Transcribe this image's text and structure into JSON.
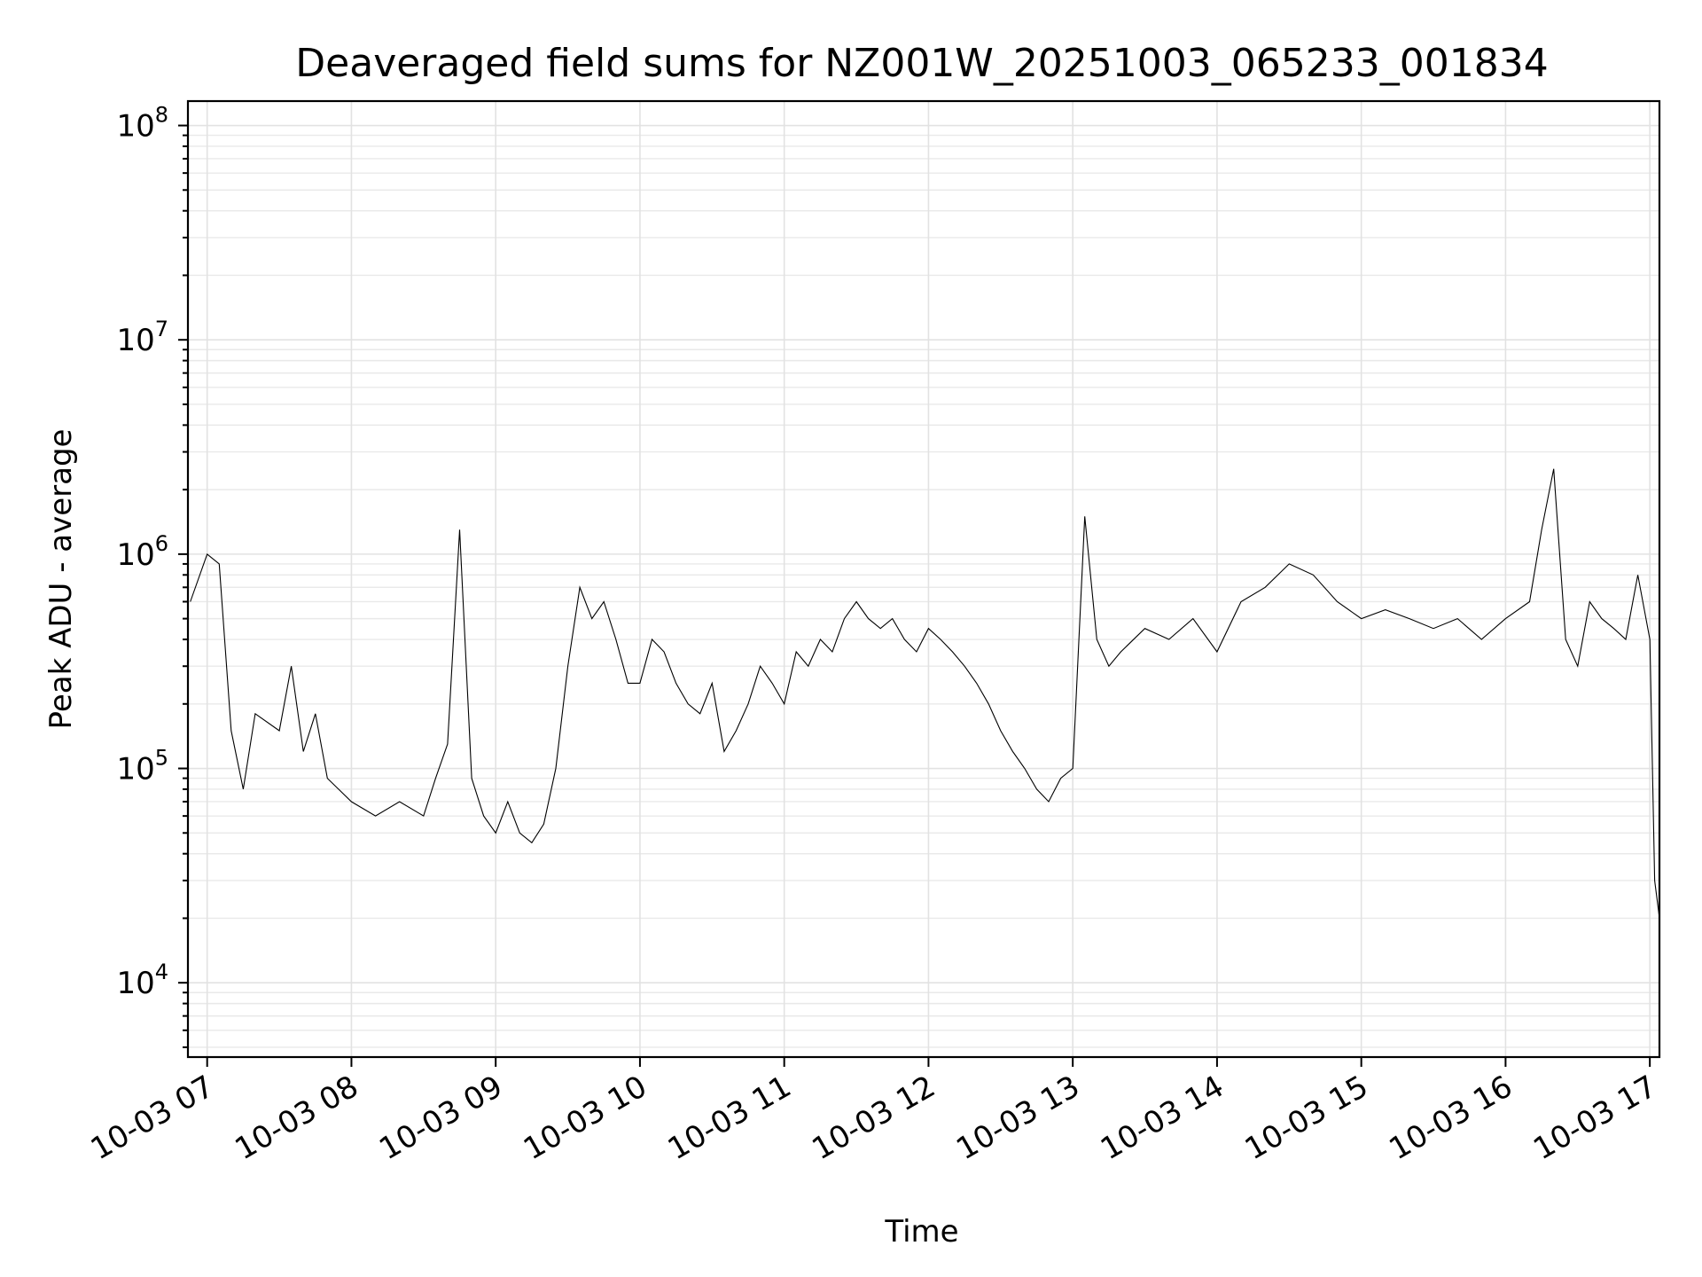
{
  "chart_data": {
    "type": "line",
    "title": "Deaveraged field sums for NZ001W_20251003_065233_001834",
    "xlabel": "Time",
    "ylabel": "Peak ADU - average",
    "yscale": "log",
    "xlim": [
      "2025-10-03 06:52",
      "2025-10-03 17:04"
    ],
    "ylim": [
      4500,
      130000000
    ],
    "grid": true,
    "x_ticks": [
      {
        "value": "2025-10-03 07:00",
        "label": "10-03 07"
      },
      {
        "value": "2025-10-03 08:00",
        "label": "10-03 08"
      },
      {
        "value": "2025-10-03 09:00",
        "label": "10-03 09"
      },
      {
        "value": "2025-10-03 10:00",
        "label": "10-03 10"
      },
      {
        "value": "2025-10-03 11:00",
        "label": "10-03 11"
      },
      {
        "value": "2025-10-03 12:00",
        "label": "10-03 12"
      },
      {
        "value": "2025-10-03 13:00",
        "label": "10-03 13"
      },
      {
        "value": "2025-10-03 14:00",
        "label": "10-03 14"
      },
      {
        "value": "2025-10-03 15:00",
        "label": "10-03 15"
      },
      {
        "value": "2025-10-03 16:00",
        "label": "10-03 16"
      },
      {
        "value": "2025-10-03 17:00",
        "label": "10-03 17"
      }
    ],
    "y_ticks": [
      {
        "value": 10000,
        "base": "10",
        "exp": "4"
      },
      {
        "value": 100000,
        "base": "10",
        "exp": "5"
      },
      {
        "value": 1000000,
        "base": "10",
        "exp": "6"
      },
      {
        "value": 10000000,
        "base": "10",
        "exp": "7"
      },
      {
        "value": 100000000,
        "base": "10",
        "exp": "8"
      }
    ],
    "series": [
      {
        "color": "#000000",
        "x": [
          "2025-10-03 06:53",
          "2025-10-03 07:00",
          "2025-10-03 07:05",
          "2025-10-03 07:10",
          "2025-10-03 07:15",
          "2025-10-03 07:20",
          "2025-10-03 07:30",
          "2025-10-03 07:35",
          "2025-10-03 07:40",
          "2025-10-03 07:45",
          "2025-10-03 07:50",
          "2025-10-03 08:00",
          "2025-10-03 08:10",
          "2025-10-03 08:20",
          "2025-10-03 08:30",
          "2025-10-03 08:35",
          "2025-10-03 08:40",
          "2025-10-03 08:45",
          "2025-10-03 08:50",
          "2025-10-03 08:55",
          "2025-10-03 09:00",
          "2025-10-03 09:05",
          "2025-10-03 09:10",
          "2025-10-03 09:15",
          "2025-10-03 09:20",
          "2025-10-03 09:25",
          "2025-10-03 09:30",
          "2025-10-03 09:35",
          "2025-10-03 09:40",
          "2025-10-03 09:45",
          "2025-10-03 09:50",
          "2025-10-03 09:55",
          "2025-10-03 10:00",
          "2025-10-03 10:05",
          "2025-10-03 10:10",
          "2025-10-03 10:15",
          "2025-10-03 10:20",
          "2025-10-03 10:25",
          "2025-10-03 10:30",
          "2025-10-03 10:35",
          "2025-10-03 10:40",
          "2025-10-03 10:45",
          "2025-10-03 10:50",
          "2025-10-03 10:55",
          "2025-10-03 11:00",
          "2025-10-03 11:05",
          "2025-10-03 11:10",
          "2025-10-03 11:15",
          "2025-10-03 11:20",
          "2025-10-03 11:25",
          "2025-10-03 11:30",
          "2025-10-03 11:35",
          "2025-10-03 11:40",
          "2025-10-03 11:45",
          "2025-10-03 11:50",
          "2025-10-03 11:55",
          "2025-10-03 12:00",
          "2025-10-03 12:05",
          "2025-10-03 12:10",
          "2025-10-03 12:15",
          "2025-10-03 12:20",
          "2025-10-03 12:25",
          "2025-10-03 12:30",
          "2025-10-03 12:35",
          "2025-10-03 12:40",
          "2025-10-03 12:45",
          "2025-10-03 12:50",
          "2025-10-03 12:55",
          "2025-10-03 13:00",
          "2025-10-03 13:05",
          "2025-10-03 13:10",
          "2025-10-03 13:15",
          "2025-10-03 13:20",
          "2025-10-03 13:30",
          "2025-10-03 13:40",
          "2025-10-03 13:50",
          "2025-10-03 14:00",
          "2025-10-03 14:10",
          "2025-10-03 14:20",
          "2025-10-03 14:30",
          "2025-10-03 14:40",
          "2025-10-03 14:50",
          "2025-10-03 15:00",
          "2025-10-03 15:10",
          "2025-10-03 15:20",
          "2025-10-03 15:30",
          "2025-10-03 15:40",
          "2025-10-03 15:50",
          "2025-10-03 16:00",
          "2025-10-03 16:10",
          "2025-10-03 16:15",
          "2025-10-03 16:20",
          "2025-10-03 16:25",
          "2025-10-03 16:30",
          "2025-10-03 16:35",
          "2025-10-03 16:40",
          "2025-10-03 16:45",
          "2025-10-03 16:50",
          "2025-10-03 16:55",
          "2025-10-03 17:00",
          "2025-10-03 17:02",
          "2025-10-03 17:04"
        ],
        "y": [
          600000,
          1000000,
          900000,
          150000,
          80000,
          180000,
          150000,
          300000,
          120000,
          180000,
          90000,
          70000,
          60000,
          70000,
          60000,
          90000,
          130000,
          1300000,
          90000,
          60000,
          50000,
          70000,
          50000,
          45000,
          55000,
          100000,
          300000,
          700000,
          500000,
          600000,
          400000,
          250000,
          250000,
          400000,
          350000,
          250000,
          200000,
          180000,
          250000,
          120000,
          150000,
          200000,
          300000,
          250000,
          200000,
          350000,
          300000,
          400000,
          350000,
          500000,
          600000,
          500000,
          450000,
          500000,
          400000,
          350000,
          450000,
          400000,
          350000,
          300000,
          250000,
          200000,
          150000,
          120000,
          100000,
          80000,
          70000,
          90000,
          100000,
          1500000,
          400000,
          300000,
          350000,
          450000,
          400000,
          500000,
          350000,
          600000,
          700000,
          900000,
          800000,
          600000,
          500000,
          550000,
          500000,
          450000,
          500000,
          400000,
          500000,
          600000,
          1300000,
          2500000,
          400000,
          300000,
          600000,
          500000,
          450000,
          400000,
          800000,
          400000,
          30000,
          20000
        ]
      }
    ]
  }
}
